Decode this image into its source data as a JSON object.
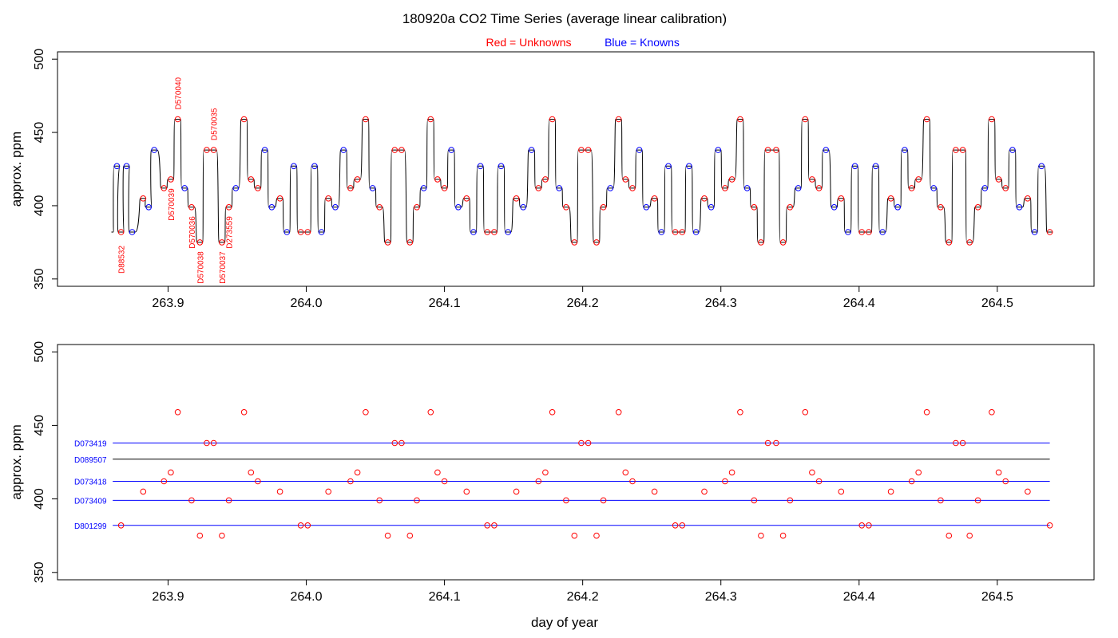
{
  "chart_data": [
    {
      "type": "line",
      "panel": "top",
      "title": "180920a   CO2 Time Series (average linear calibration)",
      "legend": {
        "unknowns": "Red = Unknowns",
        "knowns": "Blue = Knowns",
        "placement": "top-center"
      },
      "ylabel": "approx. ppm",
      "xlabel": "",
      "xlim": [
        263.82,
        264.57
      ],
      "ylim": [
        345,
        505
      ],
      "x_ticks": [
        "263.9",
        "264.0",
        "264.1",
        "264.2",
        "264.3",
        "264.4",
        "264.5"
      ],
      "y_ticks": [
        "350",
        "400",
        "450",
        "500"
      ],
      "colors": {
        "unknown": "#ff0000",
        "known": "#0000ff",
        "trace": "#000000"
      },
      "sample_sequence": [
        {
          "x": 263.863,
          "y": 427,
          "type": "known"
        },
        {
          "x": 263.866,
          "y": 382,
          "type": "unknown",
          "label": "D88532"
        },
        {
          "x": 263.87,
          "y": 427,
          "type": "known"
        },
        {
          "x": 263.874,
          "y": 382,
          "type": "known"
        },
        {
          "x": 263.882,
          "y": 405,
          "type": "unknown"
        },
        {
          "x": 263.886,
          "y": 399,
          "type": "known"
        },
        {
          "x": 263.89,
          "y": 438,
          "type": "known"
        },
        {
          "x": 263.897,
          "y": 412,
          "type": "unknown"
        },
        {
          "x": 263.902,
          "y": 418,
          "type": "unknown",
          "label": "D570039"
        },
        {
          "x": 263.907,
          "y": 459,
          "type": "unknown",
          "label": "D570040"
        },
        {
          "x": 263.912,
          "y": 412,
          "type": "known"
        },
        {
          "x": 263.917,
          "y": 399,
          "type": "unknown",
          "label": "D570036"
        },
        {
          "x": 263.923,
          "y": 375,
          "type": "unknown",
          "label": "D570038"
        },
        {
          "x": 263.928,
          "y": 438,
          "type": "unknown"
        },
        {
          "x": 263.933,
          "y": 438,
          "type": "unknown",
          "label": "D570035"
        },
        {
          "x": 263.939,
          "y": 375,
          "type": "unknown",
          "label": "D570037"
        },
        {
          "x": 263.944,
          "y": 399,
          "type": "unknown",
          "label": "D273559"
        },
        {
          "x": 263.949,
          "y": 412,
          "type": "known"
        },
        {
          "x": 263.955,
          "y": 459,
          "type": "unknown"
        },
        {
          "x": 263.96,
          "y": 418,
          "type": "unknown"
        },
        {
          "x": 263.965,
          "y": 412,
          "type": "unknown"
        },
        {
          "x": 263.97,
          "y": 438,
          "type": "known"
        },
        {
          "x": 263.975,
          "y": 399,
          "type": "known"
        },
        {
          "x": 263.981,
          "y": 405,
          "type": "unknown"
        },
        {
          "x": 263.986,
          "y": 382,
          "type": "known"
        },
        {
          "x": 263.991,
          "y": 427,
          "type": "known"
        },
        {
          "x": 263.996,
          "y": 382,
          "type": "unknown"
        },
        {
          "x": 264.001,
          "y": 382,
          "type": "unknown"
        },
        {
          "x": 264.006,
          "y": 427,
          "type": "known"
        },
        {
          "x": 264.011,
          "y": 382,
          "type": "known"
        },
        {
          "x": 264.016,
          "y": 405,
          "type": "unknown"
        },
        {
          "x": 264.021,
          "y": 399,
          "type": "known"
        },
        {
          "x": 264.027,
          "y": 438,
          "type": "known"
        },
        {
          "x": 264.032,
          "y": 412,
          "type": "unknown"
        },
        {
          "x": 264.037,
          "y": 418,
          "type": "unknown"
        },
        {
          "x": 264.043,
          "y": 459,
          "type": "unknown"
        },
        {
          "x": 264.048,
          "y": 412,
          "type": "known"
        },
        {
          "x": 264.053,
          "y": 399,
          "type": "unknown"
        },
        {
          "x": 264.059,
          "y": 375,
          "type": "unknown"
        },
        {
          "x": 264.064,
          "y": 438,
          "type": "unknown"
        },
        {
          "x": 264.069,
          "y": 438,
          "type": "unknown"
        },
        {
          "x": 264.075,
          "y": 375,
          "type": "unknown"
        },
        {
          "x": 264.08,
          "y": 399,
          "type": "unknown"
        },
        {
          "x": 264.085,
          "y": 412,
          "type": "known"
        },
        {
          "x": 264.09,
          "y": 459,
          "type": "unknown"
        },
        {
          "x": 264.095,
          "y": 418,
          "type": "unknown"
        },
        {
          "x": 264.1,
          "y": 412,
          "type": "unknown"
        },
        {
          "x": 264.105,
          "y": 438,
          "type": "known"
        },
        {
          "x": 264.11,
          "y": 399,
          "type": "known"
        },
        {
          "x": 264.116,
          "y": 405,
          "type": "unknown"
        },
        {
          "x": 264.121,
          "y": 382,
          "type": "known"
        },
        {
          "x": 264.126,
          "y": 427,
          "type": "known"
        },
        {
          "x": 264.131,
          "y": 382,
          "type": "unknown"
        },
        {
          "x": 264.136,
          "y": 382,
          "type": "unknown"
        },
        {
          "x": 264.141,
          "y": 427,
          "type": "known"
        },
        {
          "x": 264.146,
          "y": 382,
          "type": "known"
        },
        {
          "x": 264.152,
          "y": 405,
          "type": "unknown"
        },
        {
          "x": 264.157,
          "y": 399,
          "type": "known"
        },
        {
          "x": 264.163,
          "y": 438,
          "type": "known"
        },
        {
          "x": 264.168,
          "y": 412,
          "type": "unknown"
        },
        {
          "x": 264.173,
          "y": 418,
          "type": "unknown"
        },
        {
          "x": 264.178,
          "y": 459,
          "type": "unknown"
        },
        {
          "x": 264.183,
          "y": 412,
          "type": "known"
        },
        {
          "x": 264.188,
          "y": 399,
          "type": "unknown"
        },
        {
          "x": 264.194,
          "y": 375,
          "type": "unknown"
        },
        {
          "x": 264.199,
          "y": 438,
          "type": "unknown"
        },
        {
          "x": 264.204,
          "y": 438,
          "type": "unknown"
        },
        {
          "x": 264.21,
          "y": 375,
          "type": "unknown"
        },
        {
          "x": 264.215,
          "y": 399,
          "type": "unknown"
        },
        {
          "x": 264.22,
          "y": 412,
          "type": "known"
        },
        {
          "x": 264.226,
          "y": 459,
          "type": "unknown"
        },
        {
          "x": 264.231,
          "y": 418,
          "type": "unknown"
        },
        {
          "x": 264.236,
          "y": 412,
          "type": "unknown"
        },
        {
          "x": 264.241,
          "y": 438,
          "type": "known"
        },
        {
          "x": 264.246,
          "y": 399,
          "type": "known"
        },
        {
          "x": 264.252,
          "y": 405,
          "type": "unknown"
        },
        {
          "x": 264.257,
          "y": 382,
          "type": "known"
        },
        {
          "x": 264.262,
          "y": 427,
          "type": "known"
        },
        {
          "x": 264.267,
          "y": 382,
          "type": "unknown"
        },
        {
          "x": 264.272,
          "y": 382,
          "type": "unknown"
        },
        {
          "x": 264.277,
          "y": 427,
          "type": "known"
        },
        {
          "x": 264.282,
          "y": 382,
          "type": "known"
        },
        {
          "x": 264.288,
          "y": 405,
          "type": "unknown"
        },
        {
          "x": 264.293,
          "y": 399,
          "type": "known"
        },
        {
          "x": 264.298,
          "y": 438,
          "type": "known"
        },
        {
          "x": 264.303,
          "y": 412,
          "type": "unknown"
        },
        {
          "x": 264.308,
          "y": 418,
          "type": "unknown"
        },
        {
          "x": 264.314,
          "y": 459,
          "type": "unknown"
        },
        {
          "x": 264.319,
          "y": 412,
          "type": "known"
        },
        {
          "x": 264.324,
          "y": 399,
          "type": "unknown"
        },
        {
          "x": 264.329,
          "y": 375,
          "type": "unknown"
        },
        {
          "x": 264.334,
          "y": 438,
          "type": "unknown"
        },
        {
          "x": 264.34,
          "y": 438,
          "type": "unknown"
        },
        {
          "x": 264.345,
          "y": 375,
          "type": "unknown"
        },
        {
          "x": 264.35,
          "y": 399,
          "type": "unknown"
        },
        {
          "x": 264.356,
          "y": 412,
          "type": "known"
        },
        {
          "x": 264.361,
          "y": 459,
          "type": "unknown"
        },
        {
          "x": 264.366,
          "y": 418,
          "type": "unknown"
        },
        {
          "x": 264.371,
          "y": 412,
          "type": "unknown"
        },
        {
          "x": 264.376,
          "y": 438,
          "type": "known"
        },
        {
          "x": 264.382,
          "y": 399,
          "type": "known"
        },
        {
          "x": 264.387,
          "y": 405,
          "type": "unknown"
        },
        {
          "x": 264.392,
          "y": 382,
          "type": "known"
        },
        {
          "x": 264.397,
          "y": 427,
          "type": "known"
        },
        {
          "x": 264.402,
          "y": 382,
          "type": "unknown"
        },
        {
          "x": 264.407,
          "y": 382,
          "type": "unknown"
        },
        {
          "x": 264.412,
          "y": 427,
          "type": "known"
        },
        {
          "x": 264.417,
          "y": 382,
          "type": "known"
        },
        {
          "x": 264.423,
          "y": 405,
          "type": "unknown"
        },
        {
          "x": 264.428,
          "y": 399,
          "type": "known"
        },
        {
          "x": 264.433,
          "y": 438,
          "type": "known"
        },
        {
          "x": 264.438,
          "y": 412,
          "type": "unknown"
        },
        {
          "x": 264.443,
          "y": 418,
          "type": "unknown"
        },
        {
          "x": 264.449,
          "y": 459,
          "type": "unknown"
        },
        {
          "x": 264.454,
          "y": 412,
          "type": "known"
        },
        {
          "x": 264.459,
          "y": 399,
          "type": "unknown"
        },
        {
          "x": 264.465,
          "y": 375,
          "type": "unknown"
        },
        {
          "x": 264.47,
          "y": 438,
          "type": "unknown"
        },
        {
          "x": 264.475,
          "y": 438,
          "type": "unknown"
        },
        {
          "x": 264.48,
          "y": 375,
          "type": "unknown"
        },
        {
          "x": 264.486,
          "y": 399,
          "type": "unknown"
        },
        {
          "x": 264.491,
          "y": 412,
          "type": "known"
        },
        {
          "x": 264.496,
          "y": 459,
          "type": "unknown"
        },
        {
          "x": 264.501,
          "y": 418,
          "type": "unknown"
        },
        {
          "x": 264.506,
          "y": 412,
          "type": "unknown"
        },
        {
          "x": 264.511,
          "y": 438,
          "type": "known"
        },
        {
          "x": 264.516,
          "y": 399,
          "type": "known"
        },
        {
          "x": 264.522,
          "y": 405,
          "type": "unknown"
        },
        {
          "x": 264.527,
          "y": 382,
          "type": "known"
        },
        {
          "x": 264.532,
          "y": 427,
          "type": "known"
        },
        {
          "x": 264.538,
          "y": 382,
          "type": "unknown"
        }
      ]
    },
    {
      "type": "scatter",
      "panel": "bottom",
      "ylabel": "approx. ppm",
      "xlabel": "day of year",
      "xlim": [
        263.82,
        264.57
      ],
      "ylim": [
        345,
        505
      ],
      "x_ticks": [
        "263.9",
        "264.0",
        "264.1",
        "264.2",
        "264.3",
        "264.4",
        "264.5"
      ],
      "y_ticks": [
        "350",
        "400",
        "450",
        "500"
      ],
      "reference_lines": [
        {
          "label": "D073419",
          "y0": 438,
          "y1": 438,
          "x0": 263.86,
          "x1": 264.538,
          "color": "#0000ff",
          "label_color": "#0000ff"
        },
        {
          "label": "D089507",
          "y0": 427,
          "y1": 427,
          "x0": 263.86,
          "x1": 264.538,
          "color": "#000000",
          "label_color": "#0000ff"
        },
        {
          "label": "D073418",
          "y0": 412,
          "y1": 412,
          "x0": 263.86,
          "x1": 264.538,
          "color": "#0000ff",
          "label_color": "#0000ff"
        },
        {
          "label": "D073409",
          "y0": 399,
          "y1": 399,
          "x0": 263.86,
          "x1": 264.538,
          "color": "#0000ff",
          "label_color": "#0000ff"
        },
        {
          "label": "D801299",
          "y0": 382,
          "y1": 382,
          "x0": 263.86,
          "x1": 264.538,
          "color": "#0000ff",
          "label_color": "#0000ff"
        }
      ],
      "points_source": "unknown samples of panel top",
      "point_color": "#ff0000"
    }
  ]
}
